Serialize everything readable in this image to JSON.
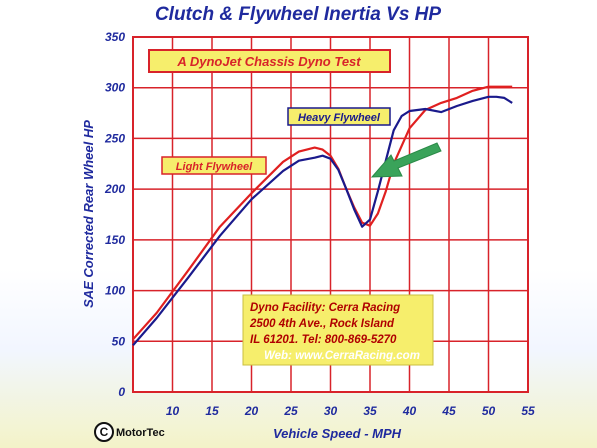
{
  "chart_data": {
    "type": "line",
    "title": "Clutch & Flywheel Inertia Vs HP",
    "subtitle": "A DynoJet Chassis Dyno Test",
    "xlabel": "Vehicle Speed - MPH",
    "ylabel": "SAE Corrected Rear Wheel HP",
    "xlim": [
      5,
      55
    ],
    "ylim": [
      0,
      350
    ],
    "x_ticks": [
      10,
      15,
      20,
      25,
      30,
      35,
      40,
      45,
      50,
      55
    ],
    "y_ticks": [
      0,
      50,
      100,
      150,
      200,
      250,
      300,
      350
    ],
    "grid": true,
    "series": [
      {
        "name": "Light Flywheel",
        "color": "#e02020",
        "x": [
          5,
          8,
          12,
          16,
          20,
          24,
          26,
          28,
          29,
          30,
          31,
          32,
          33,
          34,
          35,
          36,
          37,
          38,
          40,
          42,
          44,
          46,
          48,
          50,
          52,
          53
        ],
        "y": [
          52,
          78,
          120,
          163,
          196,
          227,
          237,
          241,
          239,
          233,
          220,
          200,
          182,
          167,
          164,
          176,
          198,
          225,
          260,
          278,
          285,
          290,
          297,
          301,
          301,
          301
        ]
      },
      {
        "name": "Heavy Flywheel",
        "color": "#1a1a8c",
        "x": [
          5,
          8,
          12,
          16,
          20,
          24,
          26,
          28,
          29,
          30,
          31,
          32,
          33,
          34,
          35,
          36,
          37,
          38,
          39,
          40,
          42,
          44,
          46,
          48,
          50,
          51,
          52,
          53
        ],
        "y": [
          46,
          73,
          113,
          154,
          190,
          218,
          228,
          231,
          233,
          230,
          219,
          200,
          180,
          163,
          170,
          198,
          228,
          258,
          272,
          277,
          279,
          276,
          282,
          287,
          291,
          291,
          290,
          285
        ]
      }
    ]
  },
  "annotations": {
    "light_label": "Light Flywheel",
    "heavy_label": "Heavy Flywheel"
  },
  "info_box": {
    "line1": "Dyno  Facility:  Cerra Racing",
    "line2": "2500  4th  Ave.,  Rock Island",
    "line3": "IL  61201.  Tel:  800-869-5270",
    "line4": "Web: www.CerraRacing.com"
  },
  "logo": {
    "text": "MotorTec"
  },
  "colors": {
    "grid": "#d8232a",
    "title": "#1f2a9e",
    "info_bg": "#f6ee6c",
    "arrow": "#3aa35a"
  }
}
